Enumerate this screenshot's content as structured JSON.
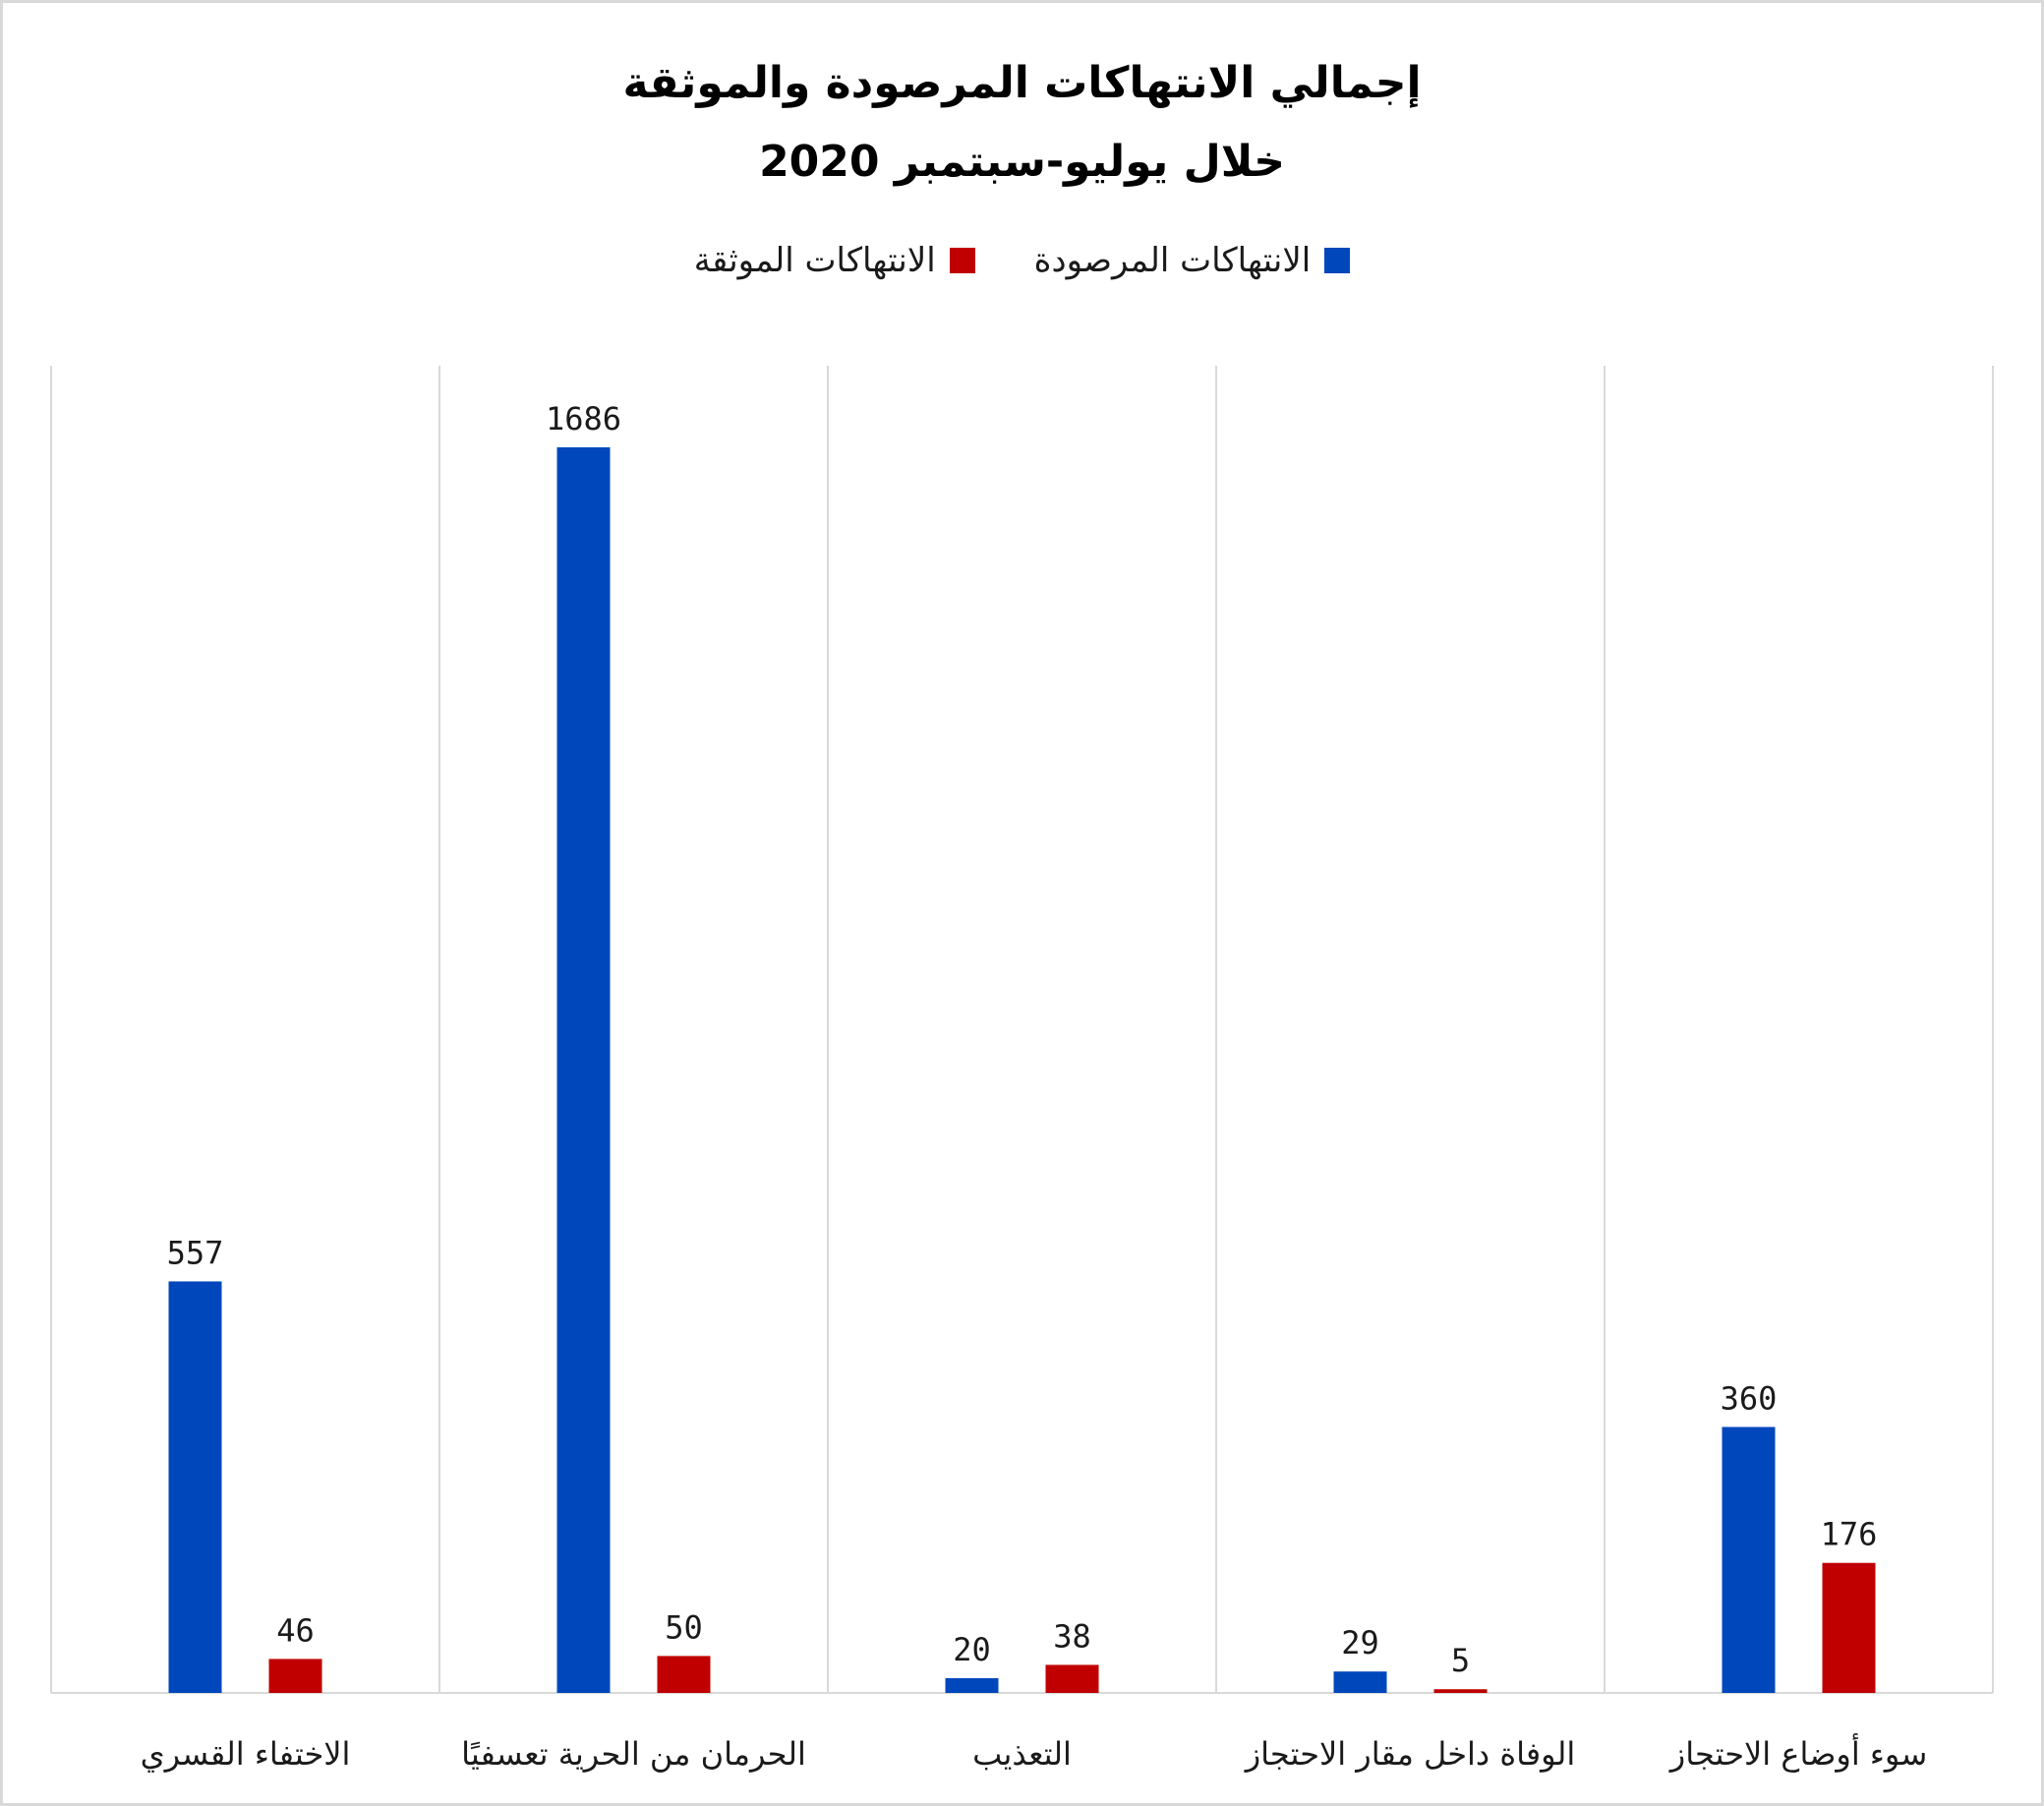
{
  "chart_data": {
    "type": "bar",
    "title_lines": [
      "إجمالي الانتهاكات المرصودة والموثقة",
      "خلال يوليو-سبتمبر 2020"
    ],
    "categories": [
      "الاختفاء القسري",
      "الحرمان من الحرية تعسفيًا",
      "التعذيب",
      "الوفاة داخل مقار الاحتجاز",
      "سوء أوضاع الاحتجاز"
    ],
    "series": [
      {
        "name": "الانتهاكات المرصودة",
        "color": "#0047BB",
        "values": [
          557,
          1686,
          20,
          29,
          360
        ]
      },
      {
        "name": "الانتهاكات الموثقة",
        "color": "#C00000",
        "values": [
          46,
          50,
          38,
          5,
          176
        ]
      }
    ],
    "ylim": [
      0,
      1800
    ],
    "grid": "vertical-category-separators",
    "legend_position": "top-center",
    "show_y_axis": false
  }
}
